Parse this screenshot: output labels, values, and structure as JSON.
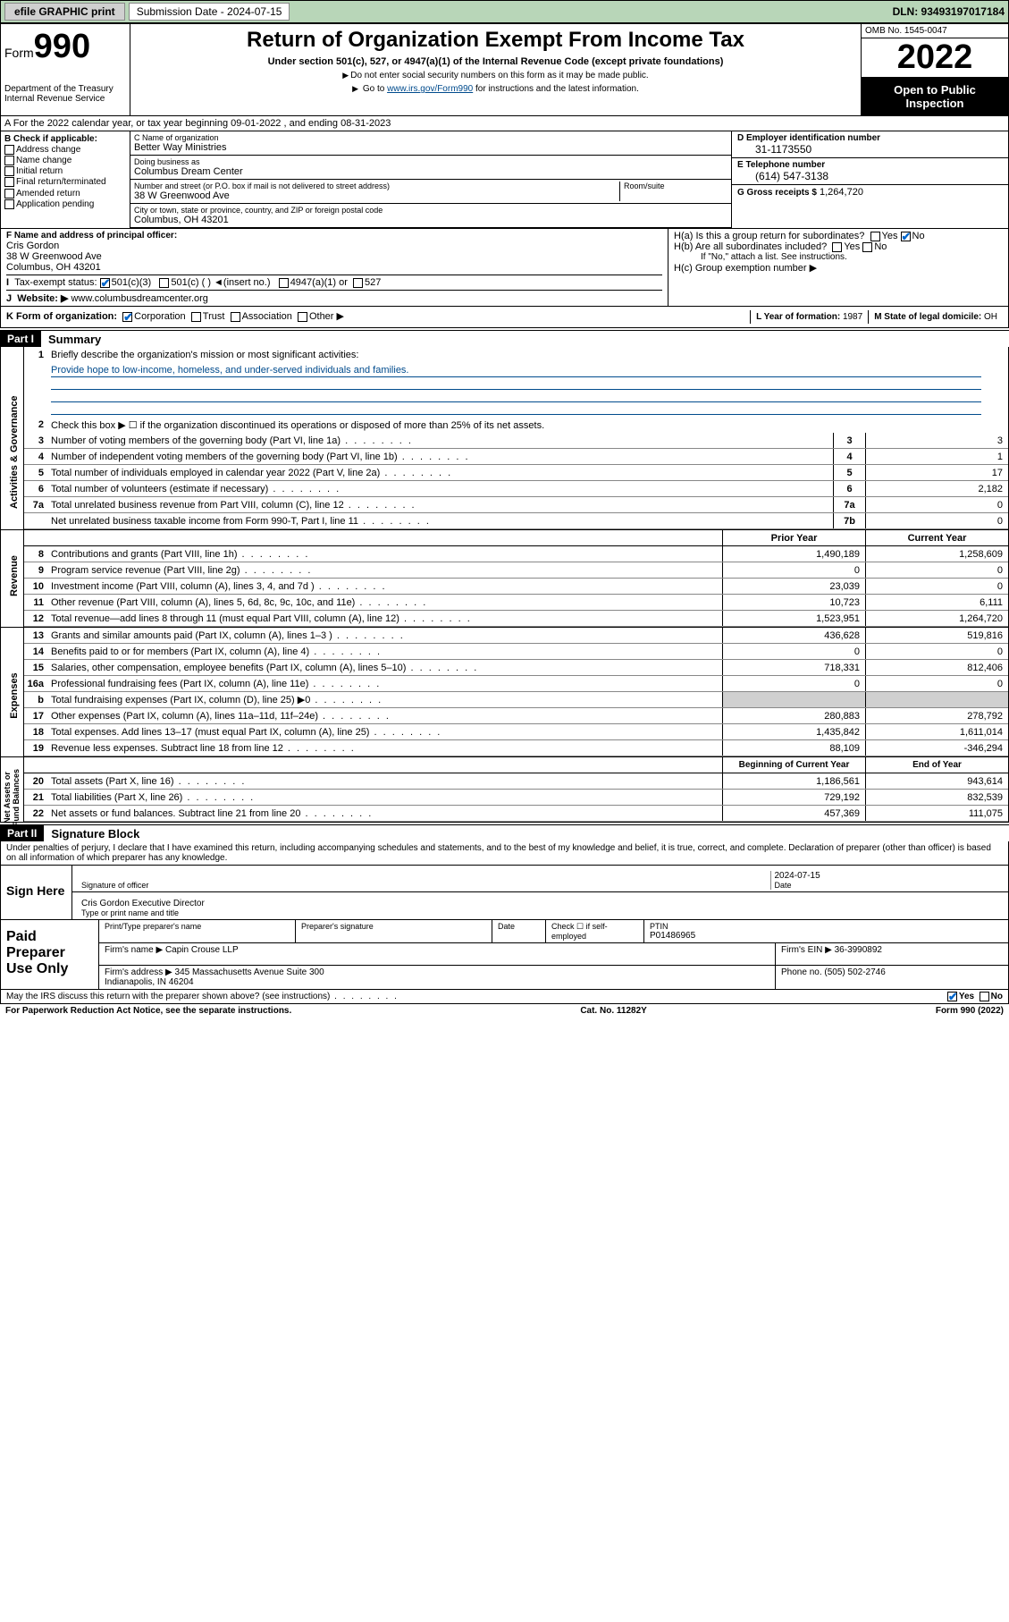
{
  "topbar": {
    "efile": "efile GRAPHIC print",
    "sub_label": "Submission Date - 2024-07-15",
    "dln": "DLN: 93493197017184"
  },
  "header": {
    "form_word": "Form",
    "form_num": "990",
    "title": "Return of Organization Exempt From Income Tax",
    "sub1": "Under section 501(c), 527, or 4947(a)(1) of the Internal Revenue Code (except private foundations)",
    "sub2_a": "Do not enter social security numbers on this form as it may be made public.",
    "sub2_b_pre": "Go to ",
    "sub2_b_link": "www.irs.gov/Form990",
    "sub2_b_post": " for instructions and the latest information.",
    "dept": "Department of the Treasury\nInternal Revenue Service",
    "omb": "OMB No. 1545-0047",
    "year": "2022",
    "open": "Open to Public Inspection"
  },
  "row_a": "A For the 2022 calendar year, or tax year beginning 09-01-2022   , and ending 08-31-2023",
  "col_b": {
    "title": "B Check if applicable:",
    "items": [
      "Address change",
      "Name change",
      "Initial return",
      "Final return/terminated",
      "Amended return",
      "Application pending"
    ]
  },
  "col_c": {
    "name_lbl": "C Name of organization",
    "name_val": "Better Way Ministries",
    "dba_lbl": "Doing business as",
    "dba_val": "Columbus Dream Center",
    "addr_lbl": "Number and street (or P.O. box if mail is not delivered to street address)",
    "addr_val": "38 W Greenwood Ave",
    "room_lbl": "Room/suite",
    "city_lbl": "City or town, state or province, country, and ZIP or foreign postal code",
    "city_val": "Columbus, OH  43201"
  },
  "col_de": {
    "d_lbl": "D Employer identification number",
    "d_val": "31-1173550",
    "e_lbl": "E Telephone number",
    "e_val": "(614) 547-3138",
    "g_lbl": "G Gross receipts $",
    "g_val": "1,264,720"
  },
  "section_f": {
    "f_lbl": "F Name and address of principal officer:",
    "f_val": "Cris Gordon\n38 W Greenwood Ave\nColumbus, OH  43201",
    "i_lbl": "Tax-exempt status:",
    "i_opts": [
      "501(c)(3)",
      "501(c) (  ) ◄(insert no.)",
      "4947(a)(1) or",
      "527"
    ],
    "j_lbl": "Website: ▶",
    "j_val": "www.columbusdreamcenter.org",
    "ha": "H(a)  Is this a group return for subordinates?",
    "hb": "H(b)  Are all subordinates included?",
    "hb_note": "If \"No,\" attach a list. See instructions.",
    "hc": "H(c)  Group exemption number ▶",
    "yes": "Yes",
    "no": "No"
  },
  "row_k": {
    "k_lbl": "K Form of organization:",
    "k_opts": [
      "Corporation",
      "Trust",
      "Association",
      "Other ▶"
    ],
    "l_lbl": "L Year of formation:",
    "l_val": "1987",
    "m_lbl": "M State of legal domicile:",
    "m_val": "OH"
  },
  "part1": {
    "hdr": "Part I",
    "title": "Summary",
    "q1": "Briefly describe the organization's mission or most significant activities:",
    "mission": "Provide hope to low-income, homeless, and under-served individuals and families.",
    "q2": "Check this box ▶ ☐  if the organization discontinued its operations or disposed of more than 25% of its net assets."
  },
  "gov_rows": [
    {
      "n": "3",
      "d": "Number of voting members of the governing body (Part VI, line 1a)",
      "box": "3",
      "v": "3"
    },
    {
      "n": "4",
      "d": "Number of independent voting members of the governing body (Part VI, line 1b)",
      "box": "4",
      "v": "1"
    },
    {
      "n": "5",
      "d": "Total number of individuals employed in calendar year 2022 (Part V, line 2a)",
      "box": "5",
      "v": "17"
    },
    {
      "n": "6",
      "d": "Total number of volunteers (estimate if necessary)",
      "box": "6",
      "v": "2,182"
    },
    {
      "n": "7a",
      "d": "Total unrelated business revenue from Part VIII, column (C), line 12",
      "box": "7a",
      "v": "0"
    },
    {
      "n": "",
      "d": "Net unrelated business taxable income from Form 990-T, Part I, line 11",
      "box": "7b",
      "v": "0"
    }
  ],
  "col_hdrs": {
    "py": "Prior Year",
    "cy": "Current Year"
  },
  "rev_rows": [
    {
      "n": "8",
      "d": "Contributions and grants (Part VIII, line 1h)",
      "py": "1,490,189",
      "cy": "1,258,609"
    },
    {
      "n": "9",
      "d": "Program service revenue (Part VIII, line 2g)",
      "py": "0",
      "cy": "0"
    },
    {
      "n": "10",
      "d": "Investment income (Part VIII, column (A), lines 3, 4, and 7d )",
      "py": "23,039",
      "cy": "0"
    },
    {
      "n": "11",
      "d": "Other revenue (Part VIII, column (A), lines 5, 6d, 8c, 9c, 10c, and 11e)",
      "py": "10,723",
      "cy": "6,111"
    },
    {
      "n": "12",
      "d": "Total revenue—add lines 8 through 11 (must equal Part VIII, column (A), line 12)",
      "py": "1,523,951",
      "cy": "1,264,720"
    }
  ],
  "exp_rows": [
    {
      "n": "13",
      "d": "Grants and similar amounts paid (Part IX, column (A), lines 1–3 )",
      "py": "436,628",
      "cy": "519,816"
    },
    {
      "n": "14",
      "d": "Benefits paid to or for members (Part IX, column (A), line 4)",
      "py": "0",
      "cy": "0"
    },
    {
      "n": "15",
      "d": "Salaries, other compensation, employee benefits (Part IX, column (A), lines 5–10)",
      "py": "718,331",
      "cy": "812,406"
    },
    {
      "n": "16a",
      "d": "Professional fundraising fees (Part IX, column (A), line 11e)",
      "py": "0",
      "cy": "0"
    },
    {
      "n": "b",
      "d": "Total fundraising expenses (Part IX, column (D), line 25) ▶0",
      "py": "",
      "cy": "",
      "shaded": true
    },
    {
      "n": "17",
      "d": "Other expenses (Part IX, column (A), lines 11a–11d, 11f–24e)",
      "py": "280,883",
      "cy": "278,792"
    },
    {
      "n": "18",
      "d": "Total expenses. Add lines 13–17 (must equal Part IX, column (A), line 25)",
      "py": "1,435,842",
      "cy": "1,611,014"
    },
    {
      "n": "19",
      "d": "Revenue less expenses. Subtract line 18 from line 12",
      "py": "88,109",
      "cy": "-346,294"
    }
  ],
  "na_hdrs": {
    "py": "Beginning of Current Year",
    "cy": "End of Year"
  },
  "na_rows": [
    {
      "n": "20",
      "d": "Total assets (Part X, line 16)",
      "py": "1,186,561",
      "cy": "943,614"
    },
    {
      "n": "21",
      "d": "Total liabilities (Part X, line 26)",
      "py": "729,192",
      "cy": "832,539"
    },
    {
      "n": "22",
      "d": "Net assets or fund balances. Subtract line 21 from line 20",
      "py": "457,369",
      "cy": "111,075"
    }
  ],
  "side_labels": {
    "gov": "Activities & Governance",
    "rev": "Revenue",
    "exp": "Expenses",
    "na": "Net Assets or\nFund Balances"
  },
  "part2": {
    "hdr": "Part II",
    "title": "Signature Block",
    "decl": "Under penalties of perjury, I declare that I have examined this return, including accompanying schedules and statements, and to the best of my knowledge and belief, it is true, correct, and complete. Declaration of preparer (other than officer) is based on all information of which preparer has any knowledge."
  },
  "sign": {
    "left": "Sign Here",
    "sig_lbl": "Signature of officer",
    "date_lbl": "Date",
    "date_val": "2024-07-15",
    "name_val": "Cris Gordon  Executive Director",
    "name_lbl": "Type or print name and title"
  },
  "paid": {
    "left": "Paid Preparer Use Only",
    "h1": "Print/Type preparer's name",
    "h2": "Preparer's signature",
    "h3": "Date",
    "h4": "Check ☐ if self-employed",
    "h5": "PTIN",
    "ptin": "P01486965",
    "firm_lbl": "Firm's name    ▶",
    "firm_val": "Capin Crouse LLP",
    "ein_lbl": "Firm's EIN ▶",
    "ein_val": "36-3990892",
    "addr_lbl": "Firm's address ▶",
    "addr_val": "345 Massachusetts Avenue Suite 300\nIndianapolis, IN  46204",
    "phone_lbl": "Phone no.",
    "phone_val": "(505) 502-2746"
  },
  "discuss": "May the IRS discuss this return with the preparer shown above? (see instructions)",
  "footer": {
    "l": "For Paperwork Reduction Act Notice, see the separate instructions.",
    "c": "Cat. No. 11282Y",
    "r": "Form 990 (2022)"
  }
}
